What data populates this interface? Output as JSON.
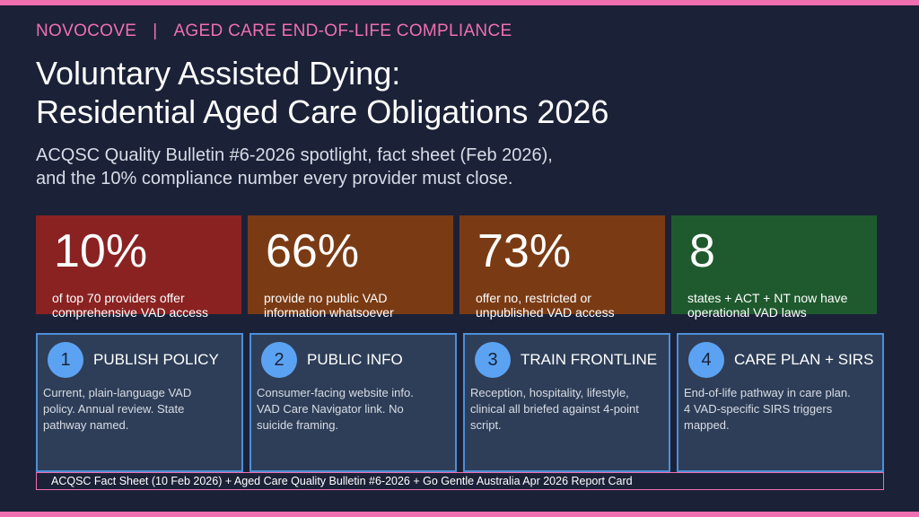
{
  "colors": {
    "accent_pink": "#f06fb0",
    "background": "#1b2238",
    "card_border": "#4d8fd9",
    "stat_red": "#8a2222",
    "stat_brown": "#7a3b14",
    "stat_green": "#1f5a2e"
  },
  "header": {
    "brand": "NOVOCOVE",
    "separator": "|",
    "section": "AGED CARE END-OF-LIFE COMPLIANCE"
  },
  "title": {
    "line1": "Voluntary Assisted Dying:",
    "line2": "Residential Aged Care Obligations 2026"
  },
  "subtitle": {
    "line1": "ACQSC Quality Bulletin #6-2026 spotlight, fact sheet (Feb 2026),",
    "line2": "and the 10% compliance number every provider must close."
  },
  "stats": [
    {
      "value": "10%",
      "line1": "of top 70 providers offer",
      "line2": "comprehensive VAD access",
      "color": "#8a2222"
    },
    {
      "value": "66%",
      "line1": "provide no public VAD",
      "line2": "information whatsoever",
      "color": "#7a3b14"
    },
    {
      "value": "73%",
      "line1": "offer no, restricted or",
      "line2": "unpublished VAD access",
      "color": "#7a3b14"
    },
    {
      "value": "8",
      "line1": "states + ACT + NT now have",
      "line2": "operational VAD laws",
      "color": "#1f5a2e"
    }
  ],
  "cards": [
    {
      "number": "1",
      "heading": "PUBLISH POLICY",
      "line1": "Current, plain-language VAD",
      "line2": "policy. Annual review. State",
      "line3": "pathway named."
    },
    {
      "number": "2",
      "heading": "PUBLIC INFO",
      "line1": "Consumer-facing website info.",
      "line2": "VAD Care Navigator link. No",
      "line3": "suicide framing."
    },
    {
      "number": "3",
      "heading": "TRAIN FRONTLINE",
      "line1": "Reception, hospitality, lifestyle,",
      "line2": "clinical all briefed against 4-point",
      "line3": "script."
    },
    {
      "number": "4",
      "heading": "CARE PLAN + SIRS",
      "line1": "End-of-life pathway in care plan.",
      "line2": "4 VAD-specific SIRS triggers",
      "line3": "mapped."
    }
  ],
  "source": "ACQSC Fact Sheet (10 Feb 2026) + Aged Care Quality Bulletin #6-2026 + Go Gentle Australia Apr 2026 Report Card"
}
